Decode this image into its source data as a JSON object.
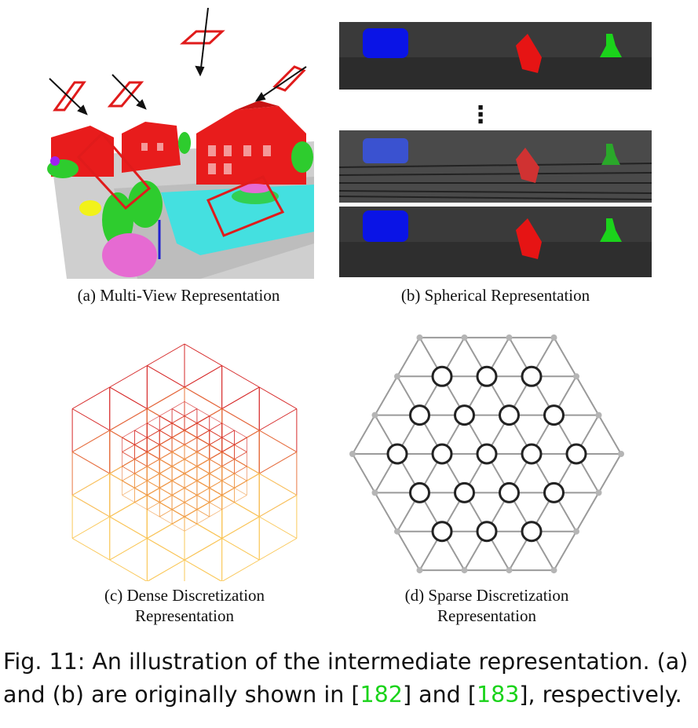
{
  "panels": {
    "a": {
      "caption": "(a) Multi-View Representation"
    },
    "b": {
      "caption": "(b) Spherical Representation",
      "ellipsis": "⋮"
    },
    "c": {
      "caption_line1": "(c) Dense Discretization",
      "caption_line2": "Representation"
    },
    "d": {
      "caption_line1": "(d) Sparse Discretization",
      "caption_line2": "Representation"
    }
  },
  "figure_caption": {
    "prefix": "Fig. 11: An illustration of the intermediate representation. (a) and (b) are originally shown in ",
    "open1": "[",
    "ref1": "182",
    "close1": "]",
    "middle": " and ",
    "open2": "[",
    "ref2": "183",
    "close2": "]",
    "suffix": ", respectively."
  },
  "colors": {
    "view_plane": "#e01b1b",
    "cyan_points": "#2fe6e6",
    "green_points": "#2ecc2e",
    "magenta_points": "#e66ad2",
    "yellow_points": "#f2f21a",
    "lidar_bg": "#3a3a3a",
    "car": "#0a14e6",
    "pedestrian_red": "#e61414",
    "pedestrian_green": "#1bd31b",
    "grid_gray": "#9a9a9a",
    "node_outline": "#222222",
    "citation": "#1bd31b"
  }
}
